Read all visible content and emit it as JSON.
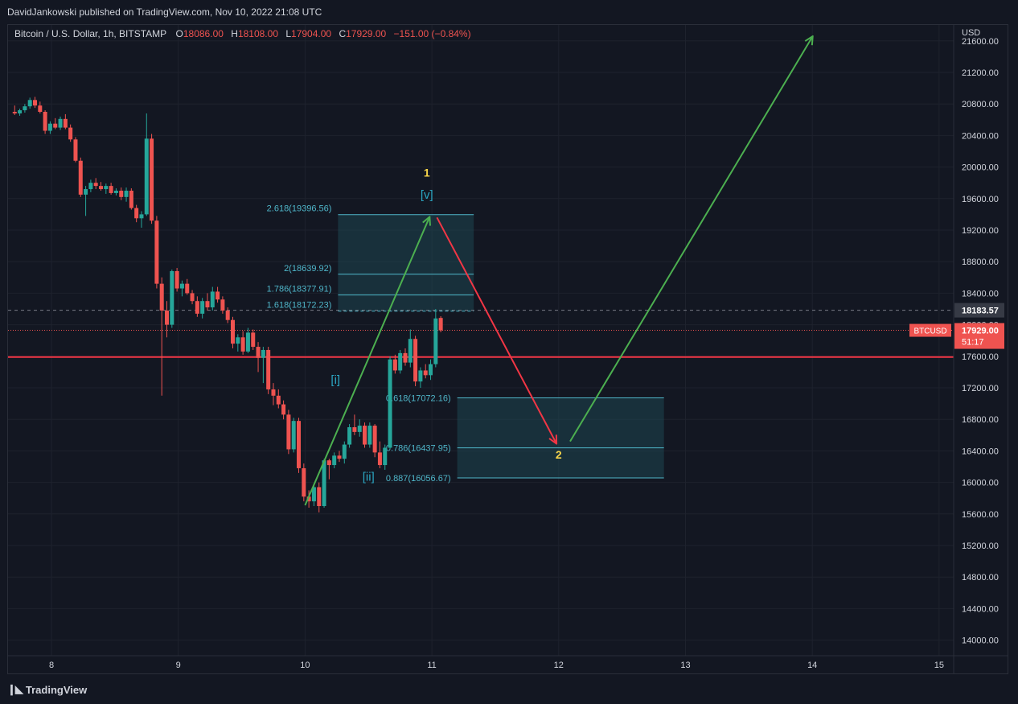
{
  "header": {
    "published_line": "DavidJankowski published on TradingView.com, Nov 10, 2022 21:08 UTC"
  },
  "legend": {
    "symbol": "Bitcoin / U.S. Dollar, 1h, BITSTAMP",
    "o_label": "O",
    "o_value": "18086.00",
    "h_label": "H",
    "h_value": "18108.00",
    "l_label": "L",
    "l_value": "17904.00",
    "c_label": "C",
    "c_value": "17929.00",
    "change": "−151.00 (−0.84%)"
  },
  "footer": {
    "logo_icon": "tradingview-logo-icon",
    "brand": "TradingView"
  },
  "colors": {
    "background": "#131722",
    "grid": "#1e222d",
    "up": "#26a69a",
    "down": "#ef5350",
    "support_line": "#f23645",
    "fib_box": "#1f4f5b",
    "fib_text": "#4fb6c9",
    "wave_label": "#2ba6c2",
    "count_label": "#f7d54a",
    "arrow_up": "#4caf50",
    "arrow_down": "#f23645"
  },
  "chart_data": {
    "type": "candlestick",
    "title": "Bitcoin / U.S. Dollar, 1h, BITSTAMP",
    "y_axis_unit": "USD",
    "y_axis_side": "right",
    "y_ticks": [
      "21600.00",
      "21200.00",
      "20800.00",
      "20400.00",
      "20000.00",
      "19600.00",
      "19200.00",
      "18800.00",
      "18400.00",
      "18000.00",
      "17600.00",
      "17200.00",
      "16800.00",
      "16400.00",
      "16000.00",
      "15600.00",
      "15200.00",
      "14800.00",
      "14400.00",
      "14000.00"
    ],
    "y_tick_values": [
      21600,
      21200,
      20800,
      20400,
      20000,
      19600,
      19200,
      18800,
      18400,
      18000,
      17600,
      17200,
      16800,
      16400,
      16000,
      15600,
      15200,
      14800,
      14400,
      14000
    ],
    "x_ticks": [
      "8",
      "9",
      "10",
      "11",
      "12",
      "13",
      "14",
      "15"
    ],
    "x_tick_values": [
      8,
      9,
      10,
      11,
      12,
      13,
      14,
      15
    ],
    "price_label": {
      "name": "BTCUSD",
      "value": "17929.00",
      "countdown": "51:17",
      "price": 17929
    },
    "crosshair_label": {
      "value": "18183.57",
      "price": 18183.57
    },
    "support_line": {
      "price": 17590
    },
    "fib_upper": {
      "x_start": 10.26,
      "x_end": 11.33,
      "levels": [
        {
          "label": "2.618(19396.56)",
          "price": 19396.56
        },
        {
          "label": "2(18639.92)",
          "price": 18639.92
        },
        {
          "label": "1.786(18377.91)",
          "price": 18377.91
        },
        {
          "label": "1.618(18172.23)",
          "price": 18172.23
        }
      ]
    },
    "fib_lower": {
      "x_start": 11.2,
      "x_end": 12.83,
      "levels": [
        {
          "label": "0.618(17072.16)",
          "price": 17072.16
        },
        {
          "label": "0.786(16437.95)",
          "price": 16437.95
        },
        {
          "label": "0.887(16056.67)",
          "price": 16056.67
        }
      ]
    },
    "wave_labels": [
      {
        "text": "1",
        "x": 10.96,
        "price": 19880,
        "style": "count"
      },
      {
        "text": "[v]",
        "x": 10.96,
        "price": 19600,
        "style": "wave"
      },
      {
        "text": "[i]",
        "x": 10.24,
        "price": 17250,
        "style": "wave"
      },
      {
        "text": "[ii]",
        "x": 10.5,
        "price": 16020,
        "style": "wave"
      },
      {
        "text": "2",
        "x": 12.0,
        "price": 16300,
        "style": "count"
      }
    ],
    "arrows": [
      {
        "name": "impulse-up-arrow",
        "from": [
          10.0,
          15710
        ],
        "to": [
          10.98,
          19360
        ],
        "color": "up"
      },
      {
        "name": "correction-down-arrow",
        "from": [
          11.04,
          19360
        ],
        "to": [
          11.98,
          16500
        ],
        "color": "down"
      },
      {
        "name": "wave3-up-arrow",
        "from": [
          12.09,
          16520
        ],
        "to": [
          14.0,
          21650
        ],
        "color": "up"
      }
    ],
    "candles": [
      {
        "t": 7.71,
        "o": 20700,
        "h": 20780,
        "l": 20660,
        "c": 20680
      },
      {
        "t": 7.75,
        "o": 20680,
        "h": 20740,
        "l": 20650,
        "c": 20720
      },
      {
        "t": 7.79,
        "o": 20720,
        "h": 20800,
        "l": 20690,
        "c": 20770
      },
      {
        "t": 7.83,
        "o": 20770,
        "h": 20880,
        "l": 20740,
        "c": 20850
      },
      {
        "t": 7.87,
        "o": 20850,
        "h": 20890,
        "l": 20750,
        "c": 20780
      },
      {
        "t": 7.91,
        "o": 20780,
        "h": 20830,
        "l": 20680,
        "c": 20700
      },
      {
        "t": 7.95,
        "o": 20700,
        "h": 20720,
        "l": 20420,
        "c": 20460
      },
      {
        "t": 7.99,
        "o": 20460,
        "h": 20580,
        "l": 20420,
        "c": 20550
      },
      {
        "t": 8.03,
        "o": 20550,
        "h": 20620,
        "l": 20480,
        "c": 20500
      },
      {
        "t": 8.07,
        "o": 20500,
        "h": 20640,
        "l": 20470,
        "c": 20610
      },
      {
        "t": 8.11,
        "o": 20610,
        "h": 20670,
        "l": 20480,
        "c": 20500
      },
      {
        "t": 8.15,
        "o": 20500,
        "h": 20540,
        "l": 20320,
        "c": 20350
      },
      {
        "t": 8.19,
        "o": 20350,
        "h": 20380,
        "l": 20060,
        "c": 20080
      },
      {
        "t": 8.23,
        "o": 20080,
        "h": 20120,
        "l": 19620,
        "c": 19650
      },
      {
        "t": 8.27,
        "o": 19650,
        "h": 19760,
        "l": 19380,
        "c": 19720
      },
      {
        "t": 8.31,
        "o": 19720,
        "h": 19840,
        "l": 19680,
        "c": 19800
      },
      {
        "t": 8.35,
        "o": 19800,
        "h": 19860,
        "l": 19720,
        "c": 19760
      },
      {
        "t": 8.39,
        "o": 19760,
        "h": 19810,
        "l": 19700,
        "c": 19720
      },
      {
        "t": 8.43,
        "o": 19720,
        "h": 19790,
        "l": 19660,
        "c": 19760
      },
      {
        "t": 8.47,
        "o": 19760,
        "h": 19800,
        "l": 19650,
        "c": 19670
      },
      {
        "t": 8.51,
        "o": 19670,
        "h": 19730,
        "l": 19640,
        "c": 19700
      },
      {
        "t": 8.55,
        "o": 19700,
        "h": 19740,
        "l": 19580,
        "c": 19620
      },
      {
        "t": 8.59,
        "o": 19620,
        "h": 19740,
        "l": 19560,
        "c": 19700
      },
      {
        "t": 8.63,
        "o": 19700,
        "h": 19730,
        "l": 19460,
        "c": 19480
      },
      {
        "t": 8.67,
        "o": 19480,
        "h": 19520,
        "l": 19300,
        "c": 19350
      },
      {
        "t": 8.71,
        "o": 19350,
        "h": 19440,
        "l": 19230,
        "c": 19400
      },
      {
        "t": 8.75,
        "o": 19400,
        "h": 20680,
        "l": 19380,
        "c": 20360
      },
      {
        "t": 8.79,
        "o": 20360,
        "h": 20420,
        "l": 19280,
        "c": 19320
      },
      {
        "t": 8.83,
        "o": 19320,
        "h": 19380,
        "l": 18460,
        "c": 18520
      },
      {
        "t": 8.87,
        "o": 18520,
        "h": 18600,
        "l": 17100,
        "c": 18180
      },
      {
        "t": 8.91,
        "o": 18180,
        "h": 18300,
        "l": 17840,
        "c": 18000
      },
      {
        "t": 8.95,
        "o": 18000,
        "h": 18700,
        "l": 17960,
        "c": 18680
      },
      {
        "t": 8.99,
        "o": 18680,
        "h": 18720,
        "l": 18420,
        "c": 18460
      },
      {
        "t": 9.03,
        "o": 18460,
        "h": 18560,
        "l": 18360,
        "c": 18520
      },
      {
        "t": 9.07,
        "o": 18520,
        "h": 18580,
        "l": 18380,
        "c": 18400
      },
      {
        "t": 9.11,
        "o": 18400,
        "h": 18440,
        "l": 18260,
        "c": 18300
      },
      {
        "t": 9.15,
        "o": 18300,
        "h": 18360,
        "l": 18100,
        "c": 18140
      },
      {
        "t": 9.19,
        "o": 18140,
        "h": 18340,
        "l": 18080,
        "c": 18300
      },
      {
        "t": 9.23,
        "o": 18300,
        "h": 18400,
        "l": 18180,
        "c": 18220
      },
      {
        "t": 9.27,
        "o": 18220,
        "h": 18480,
        "l": 18180,
        "c": 18420
      },
      {
        "t": 9.31,
        "o": 18420,
        "h": 18480,
        "l": 18280,
        "c": 18320
      },
      {
        "t": 9.35,
        "o": 18320,
        "h": 18360,
        "l": 18140,
        "c": 18180
      },
      {
        "t": 9.39,
        "o": 18180,
        "h": 18220,
        "l": 18020,
        "c": 18060
      },
      {
        "t": 9.43,
        "o": 18060,
        "h": 18100,
        "l": 17700,
        "c": 17760
      },
      {
        "t": 9.47,
        "o": 17760,
        "h": 17880,
        "l": 17660,
        "c": 17840
      },
      {
        "t": 9.51,
        "o": 17840,
        "h": 17920,
        "l": 17620,
        "c": 17660
      },
      {
        "t": 9.55,
        "o": 17660,
        "h": 17960,
        "l": 17640,
        "c": 17900
      },
      {
        "t": 9.59,
        "o": 17900,
        "h": 17940,
        "l": 17680,
        "c": 17720
      },
      {
        "t": 9.63,
        "o": 17720,
        "h": 17780,
        "l": 17400,
        "c": 17580
      },
      {
        "t": 9.67,
        "o": 17580,
        "h": 17720,
        "l": 17260,
        "c": 17680
      },
      {
        "t": 9.71,
        "o": 17680,
        "h": 17720,
        "l": 17120,
        "c": 17180
      },
      {
        "t": 9.75,
        "o": 17180,
        "h": 17260,
        "l": 16980,
        "c": 17100
      },
      {
        "t": 9.79,
        "o": 17100,
        "h": 17180,
        "l": 16940,
        "c": 16990
      },
      {
        "t": 9.83,
        "o": 16990,
        "h": 17040,
        "l": 16800,
        "c": 16860
      },
      {
        "t": 9.87,
        "o": 16860,
        "h": 16920,
        "l": 16360,
        "c": 16420
      },
      {
        "t": 9.91,
        "o": 16420,
        "h": 16820,
        "l": 16380,
        "c": 16780
      },
      {
        "t": 9.95,
        "o": 16780,
        "h": 16820,
        "l": 16120,
        "c": 16180
      },
      {
        "t": 9.99,
        "o": 16180,
        "h": 16240,
        "l": 15760,
        "c": 15820
      },
      {
        "t": 10.03,
        "o": 15820,
        "h": 15900,
        "l": 15680,
        "c": 15760
      },
      {
        "t": 10.07,
        "o": 15760,
        "h": 15980,
        "l": 15700,
        "c": 15940
      },
      {
        "t": 10.11,
        "o": 15940,
        "h": 16000,
        "l": 15620,
        "c": 15700
      },
      {
        "t": 10.15,
        "o": 15700,
        "h": 16300,
        "l": 15680,
        "c": 16280
      },
      {
        "t": 10.19,
        "o": 16280,
        "h": 16300,
        "l": 16040,
        "c": 16220
      },
      {
        "t": 10.23,
        "o": 16220,
        "h": 16380,
        "l": 16180,
        "c": 16340
      },
      {
        "t": 10.27,
        "o": 16340,
        "h": 16400,
        "l": 16260,
        "c": 16300
      },
      {
        "t": 10.31,
        "o": 16300,
        "h": 16520,
        "l": 16240,
        "c": 16480
      },
      {
        "t": 10.35,
        "o": 16480,
        "h": 16740,
        "l": 16440,
        "c": 16700
      },
      {
        "t": 10.39,
        "o": 16700,
        "h": 16860,
        "l": 16600,
        "c": 16640
      },
      {
        "t": 10.43,
        "o": 16640,
        "h": 16800,
        "l": 16580,
        "c": 16720
      },
      {
        "t": 10.47,
        "o": 16720,
        "h": 16760,
        "l": 16440,
        "c": 16480
      },
      {
        "t": 10.51,
        "o": 16480,
        "h": 16760,
        "l": 16440,
        "c": 16720
      },
      {
        "t": 10.55,
        "o": 16720,
        "h": 16740,
        "l": 16320,
        "c": 16380
      },
      {
        "t": 10.59,
        "o": 16380,
        "h": 16520,
        "l": 16180,
        "c": 16220
      },
      {
        "t": 10.63,
        "o": 16220,
        "h": 16480,
        "l": 16160,
        "c": 16440
      },
      {
        "t": 10.67,
        "o": 16440,
        "h": 17600,
        "l": 16420,
        "c": 17560
      },
      {
        "t": 10.71,
        "o": 17560,
        "h": 17620,
        "l": 17380,
        "c": 17420
      },
      {
        "t": 10.75,
        "o": 17420,
        "h": 17680,
        "l": 17380,
        "c": 17640
      },
      {
        "t": 10.79,
        "o": 17640,
        "h": 17700,
        "l": 17480,
        "c": 17520
      },
      {
        "t": 10.83,
        "o": 17520,
        "h": 17940,
        "l": 17460,
        "c": 17820
      },
      {
        "t": 10.87,
        "o": 17820,
        "h": 17860,
        "l": 17220,
        "c": 17280
      },
      {
        "t": 10.91,
        "o": 17280,
        "h": 17460,
        "l": 17200,
        "c": 17420
      },
      {
        "t": 10.95,
        "o": 17420,
        "h": 17500,
        "l": 17320,
        "c": 17360
      },
      {
        "t": 10.99,
        "o": 17360,
        "h": 17560,
        "l": 17300,
        "c": 17500
      },
      {
        "t": 11.03,
        "o": 17500,
        "h": 18200,
        "l": 17460,
        "c": 18080
      },
      {
        "t": 11.07,
        "o": 18086,
        "h": 18108,
        "l": 17904,
        "c": 17929
      }
    ]
  }
}
